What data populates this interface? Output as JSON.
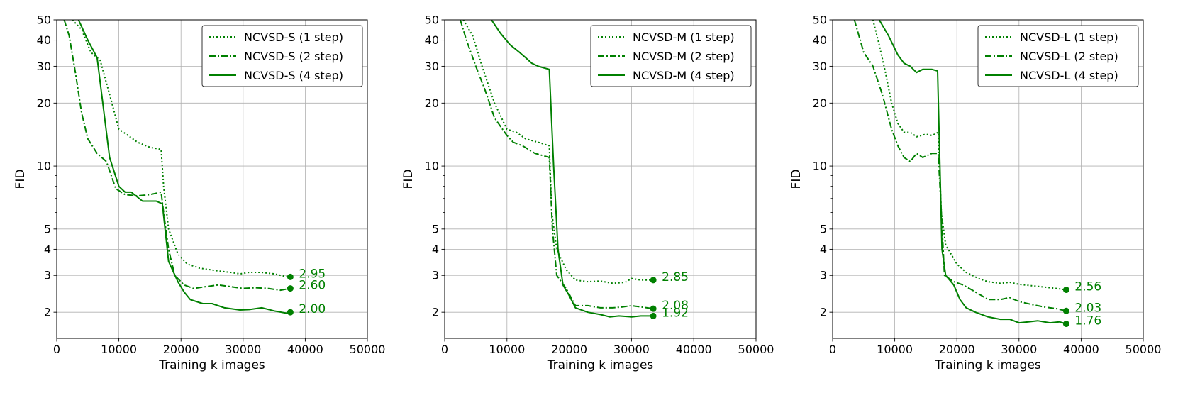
{
  "chart_data": [
    {
      "type": "line",
      "xlabel": "Training k images",
      "ylabel": "FID",
      "xlim": [
        0,
        50000
      ],
      "ylim": [
        1.5,
        50
      ],
      "yscale": "log",
      "grid": true,
      "legend": "top-right",
      "color": "#008000",
      "xticks": [
        0,
        10000,
        20000,
        30000,
        40000,
        50000
      ],
      "yticks_major": [
        2,
        3,
        4,
        5,
        10,
        20,
        30,
        40,
        50
      ],
      "series": [
        {
          "name": "NCVSD-S (1 step)",
          "style": "dotted",
          "points": [
            [
              2500,
              50
            ],
            [
              4000,
              45
            ],
            [
              5500,
              35
            ],
            [
              7000,
              32
            ],
            [
              8500,
              22
            ],
            [
              10000,
              15
            ],
            [
              11500,
              14
            ],
            [
              13000,
              13
            ],
            [
              15000,
              12.3
            ],
            [
              16800,
              12
            ],
            [
              17200,
              8
            ],
            [
              18000,
              5
            ],
            [
              19500,
              3.8
            ],
            [
              21000,
              3.4
            ],
            [
              23000,
              3.25
            ],
            [
              24500,
              3.2
            ],
            [
              26000,
              3.15
            ],
            [
              28000,
              3.1
            ],
            [
              29500,
              3.05
            ],
            [
              31000,
              3.1
            ],
            [
              33000,
              3.1
            ],
            [
              35000,
              3.05
            ],
            [
              36500,
              2.98
            ],
            [
              37600,
              2.95
            ]
          ],
          "end_label": "2.95"
        },
        {
          "name": "NCVSD-S (2 step)",
          "style": "dashdot",
          "points": [
            [
              1200,
              50
            ],
            [
              2000,
              42
            ],
            [
              3000,
              28
            ],
            [
              4000,
              18
            ],
            [
              5000,
              13.5
            ],
            [
              6500,
              11.5
            ],
            [
              8000,
              10.5
            ],
            [
              9500,
              7.8
            ],
            [
              11000,
              7.3
            ],
            [
              13000,
              7.2
            ],
            [
              15000,
              7.3
            ],
            [
              16800,
              7.5
            ],
            [
              17200,
              6
            ],
            [
              18000,
              4
            ],
            [
              19000,
              3
            ],
            [
              20500,
              2.7
            ],
            [
              22000,
              2.6
            ],
            [
              24000,
              2.65
            ],
            [
              26000,
              2.7
            ],
            [
              28000,
              2.65
            ],
            [
              30000,
              2.6
            ],
            [
              32000,
              2.62
            ],
            [
              34000,
              2.6
            ],
            [
              36000,
              2.55
            ],
            [
              37600,
              2.6
            ]
          ],
          "end_label": "2.60"
        },
        {
          "name": "NCVSD-S (4 step)",
          "style": "solid",
          "points": [
            [
              3500,
              50
            ],
            [
              5000,
              40
            ],
            [
              6500,
              33
            ],
            [
              8500,
              11
            ],
            [
              10000,
              8
            ],
            [
              11000,
              7.5
            ],
            [
              12000,
              7.5
            ],
            [
              13800,
              6.8
            ],
            [
              16000,
              6.8
            ],
            [
              17000,
              6.6
            ],
            [
              18000,
              3.5
            ],
            [
              19500,
              2.8
            ],
            [
              20500,
              2.5
            ],
            [
              21500,
              2.3
            ],
            [
              23500,
              2.2
            ],
            [
              25000,
              2.2
            ],
            [
              27000,
              2.1
            ],
            [
              29500,
              2.05
            ],
            [
              31000,
              2.06
            ],
            [
              33000,
              2.1
            ],
            [
              35000,
              2.03
            ],
            [
              37000,
              1.98
            ],
            [
              37600,
              2.0
            ]
          ],
          "end_label": "2.00"
        }
      ]
    },
    {
      "type": "line",
      "xlabel": "Training k images",
      "ylabel": "FID",
      "xlim": [
        0,
        50000
      ],
      "ylim": [
        1.5,
        50
      ],
      "yscale": "log",
      "grid": true,
      "legend": "top-right",
      "color": "#008000",
      "xticks": [
        0,
        10000,
        20000,
        30000,
        40000,
        50000
      ],
      "yticks_major": [
        2,
        3,
        4,
        5,
        10,
        20,
        30,
        40,
        50
      ],
      "series": [
        {
          "name": "NCVSD-M (1 step)",
          "style": "dotted",
          "points": [
            [
              3000,
              50
            ],
            [
              4500,
              42
            ],
            [
              6000,
              30
            ],
            [
              8000,
              20
            ],
            [
              10000,
              15
            ],
            [
              11500,
              14.5
            ],
            [
              13000,
              13.5
            ],
            [
              15000,
              13
            ],
            [
              16800,
              12.5
            ],
            [
              17200,
              6
            ],
            [
              18000,
              4
            ],
            [
              19500,
              3.2
            ],
            [
              21000,
              2.85
            ],
            [
              23000,
              2.8
            ],
            [
              25000,
              2.82
            ],
            [
              27000,
              2.75
            ],
            [
              29000,
              2.78
            ],
            [
              30000,
              2.9
            ],
            [
              31500,
              2.85
            ],
            [
              33500,
              2.85
            ]
          ],
          "end_label": "2.85"
        },
        {
          "name": "NCVSD-M (2 step)",
          "style": "dashdot",
          "points": [
            [
              2500,
              50
            ],
            [
              3500,
              40
            ],
            [
              5000,
              30
            ],
            [
              6500,
              23
            ],
            [
              8000,
              17
            ],
            [
              10000,
              14
            ],
            [
              11000,
              13
            ],
            [
              12500,
              12.5
            ],
            [
              14500,
              11.5
            ],
            [
              16800,
              11
            ],
            [
              17300,
              5
            ],
            [
              18000,
              3
            ],
            [
              19500,
              2.6
            ],
            [
              21000,
              2.15
            ],
            [
              23000,
              2.15
            ],
            [
              25000,
              2.1
            ],
            [
              27000,
              2.1
            ],
            [
              28500,
              2.12
            ],
            [
              30000,
              2.15
            ],
            [
              31500,
              2.12
            ],
            [
              33500,
              2.08
            ]
          ],
          "end_label": "2.08"
        },
        {
          "name": "NCVSD-M (4 step)",
          "style": "solid",
          "points": [
            [
              7500,
              50
            ],
            [
              9000,
              43
            ],
            [
              10500,
              38
            ],
            [
              12000,
              35
            ],
            [
              13000,
              33
            ],
            [
              14000,
              31
            ],
            [
              15000,
              30
            ],
            [
              16800,
              29
            ],
            [
              17500,
              10
            ],
            [
              18200,
              4
            ],
            [
              19000,
              2.7
            ],
            [
              20000,
              2.4
            ],
            [
              21000,
              2.1
            ],
            [
              23000,
              2.0
            ],
            [
              25000,
              1.95
            ],
            [
              26500,
              1.9
            ],
            [
              28000,
              1.92
            ],
            [
              30000,
              1.9
            ],
            [
              31500,
              1.92
            ],
            [
              33500,
              1.92
            ]
          ],
          "end_label": "1.92"
        }
      ]
    },
    {
      "type": "line",
      "xlabel": "Training k images",
      "ylabel": "FID",
      "xlim": [
        0,
        50000
      ],
      "ylim": [
        1.5,
        50
      ],
      "yscale": "log",
      "grid": true,
      "legend": "top-right",
      "color": "#008000",
      "xticks": [
        0,
        10000,
        20000,
        30000,
        40000,
        50000
      ],
      "yticks_major": [
        2,
        3,
        4,
        5,
        10,
        20,
        30,
        40,
        50
      ],
      "series": [
        {
          "name": "NCVSD-L (1 step)",
          "style": "dotted",
          "points": [
            [
              6500,
              50
            ],
            [
              7500,
              38
            ],
            [
              8500,
              28
            ],
            [
              9500,
              20
            ],
            [
              10500,
              16
            ],
            [
              11500,
              14.5
            ],
            [
              12500,
              14.5
            ],
            [
              13500,
              13.8
            ],
            [
              15000,
              14.2
            ],
            [
              16000,
              14
            ],
            [
              17000,
              14.5
            ],
            [
              17500,
              6
            ],
            [
              18200,
              4.2
            ],
            [
              20000,
              3.4
            ],
            [
              21500,
              3.1
            ],
            [
              23500,
              2.9
            ],
            [
              25000,
              2.8
            ],
            [
              27000,
              2.75
            ],
            [
              28500,
              2.78
            ],
            [
              30000,
              2.72
            ],
            [
              32000,
              2.68
            ],
            [
              34000,
              2.64
            ],
            [
              36000,
              2.6
            ],
            [
              37600,
              2.56
            ]
          ],
          "end_label": "2.56"
        },
        {
          "name": "NCVSD-L (2 step)",
          "style": "dashdot",
          "points": [
            [
              3500,
              50
            ],
            [
              5000,
              35
            ],
            [
              6500,
              30
            ],
            [
              8000,
              22
            ],
            [
              9500,
              15
            ],
            [
              10500,
              12.5
            ],
            [
              11500,
              11
            ],
            [
              12500,
              10.5
            ],
            [
              13500,
              11.5
            ],
            [
              14500,
              11
            ],
            [
              16000,
              11.5
            ],
            [
              17000,
              11.5
            ],
            [
              17500,
              6
            ],
            [
              18000,
              3
            ],
            [
              19500,
              2.8
            ],
            [
              21000,
              2.7
            ],
            [
              22500,
              2.55
            ],
            [
              24000,
              2.4
            ],
            [
              25000,
              2.3
            ],
            [
              27000,
              2.3
            ],
            [
              28500,
              2.35
            ],
            [
              30000,
              2.25
            ],
            [
              32000,
              2.18
            ],
            [
              34000,
              2.12
            ],
            [
              36000,
              2.08
            ],
            [
              37600,
              2.03
            ]
          ],
          "end_label": "2.03"
        },
        {
          "name": "NCVSD-L (4 step)",
          "style": "solid",
          "points": [
            [
              7500,
              50
            ],
            [
              9000,
              42
            ],
            [
              10500,
              34
            ],
            [
              11500,
              31
            ],
            [
              12500,
              30
            ],
            [
              13500,
              28
            ],
            [
              14500,
              29
            ],
            [
              16000,
              29
            ],
            [
              16900,
              28.5
            ],
            [
              17600,
              4
            ],
            [
              18200,
              3
            ],
            [
              19500,
              2.7
            ],
            [
              20500,
              2.3
            ],
            [
              21500,
              2.1
            ],
            [
              23000,
              2.0
            ],
            [
              25000,
              1.9
            ],
            [
              27000,
              1.85
            ],
            [
              28500,
              1.85
            ],
            [
              30000,
              1.78
            ],
            [
              31500,
              1.8
            ],
            [
              33000,
              1.82
            ],
            [
              35000,
              1.78
            ],
            [
              36500,
              1.8
            ],
            [
              37600,
              1.76
            ]
          ],
          "end_label": "1.76"
        }
      ]
    }
  ]
}
